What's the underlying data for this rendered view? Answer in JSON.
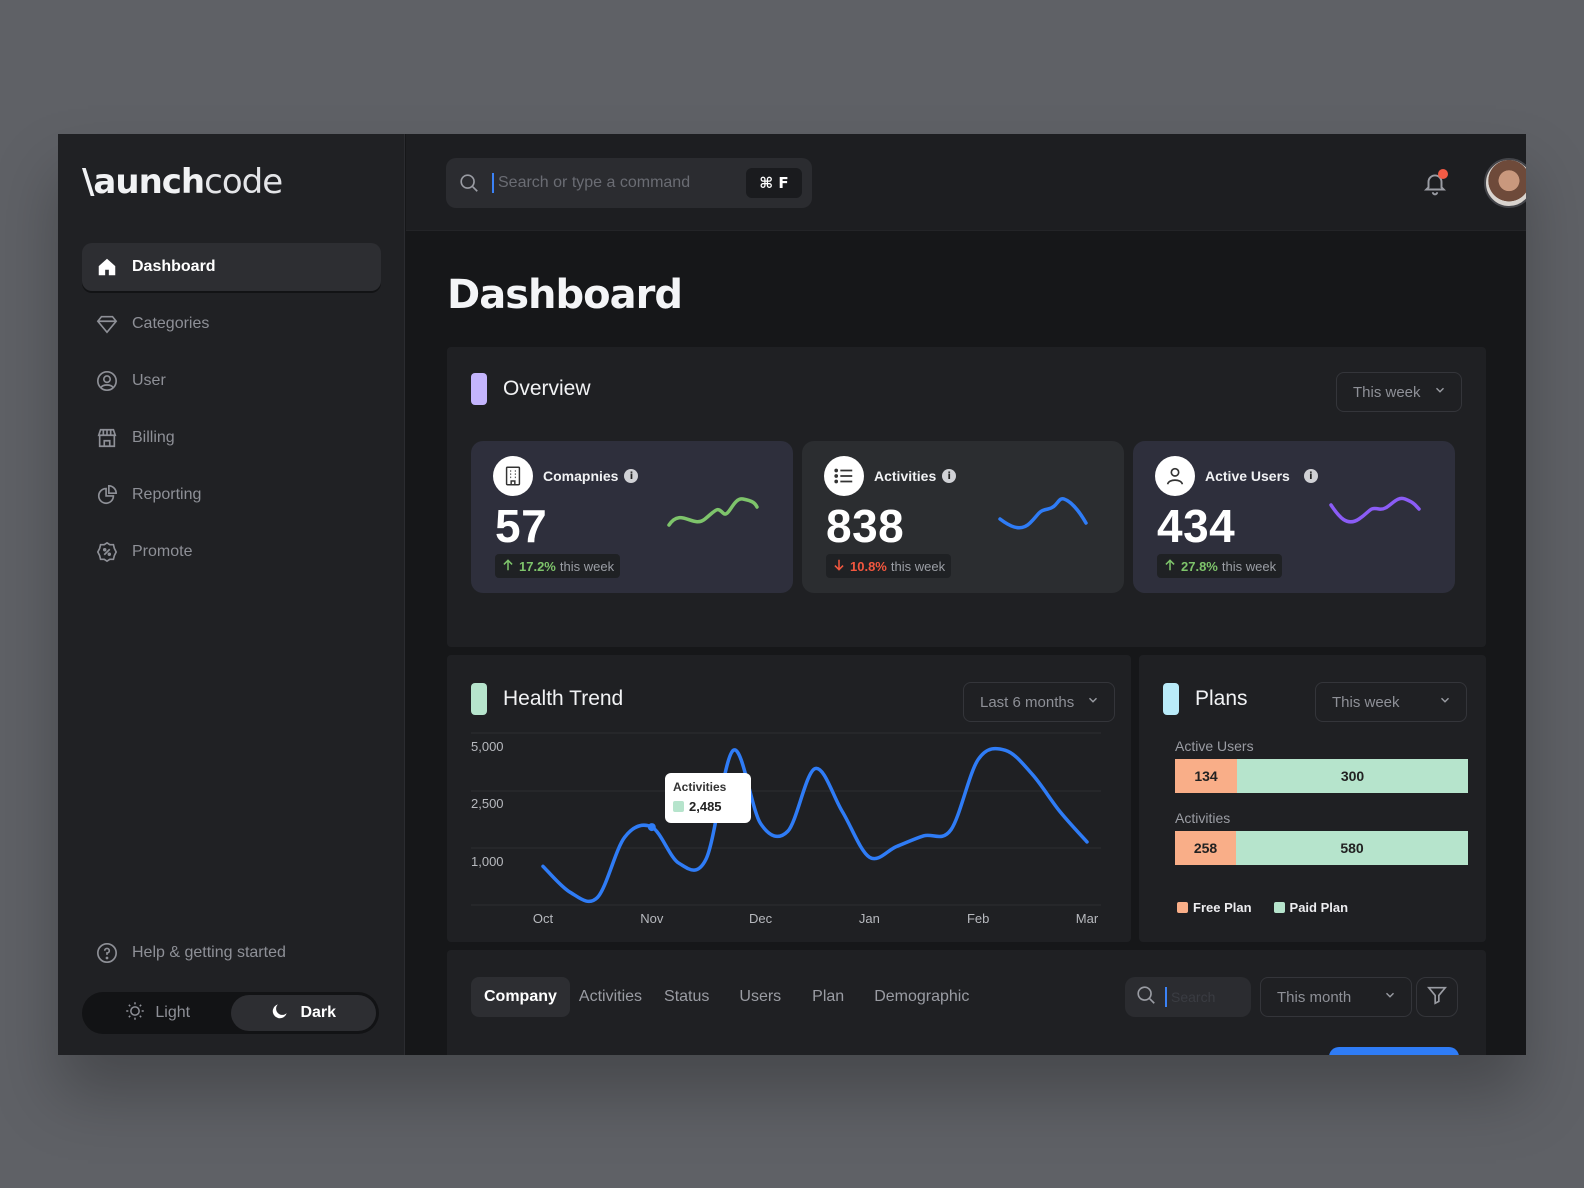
{
  "brand": {
    "logo_bold": "\\aunch",
    "logo_light": "code"
  },
  "sidebar": {
    "items": [
      {
        "label": "Dashboard",
        "icon": "home-icon",
        "active": true
      },
      {
        "label": "Categories",
        "icon": "diamond-icon"
      },
      {
        "label": "User",
        "icon": "user-circle-icon"
      },
      {
        "label": "Billing",
        "icon": "store-icon"
      },
      {
        "label": "Reporting",
        "icon": "pie-chart-icon"
      },
      {
        "label": "Promote",
        "icon": "badge-percent-icon"
      }
    ],
    "help_label": "Help & getting started",
    "theme": {
      "light_label": "Light",
      "dark_label": "Dark",
      "selected": "Dark"
    }
  },
  "topbar": {
    "search_placeholder": "Search or type a command",
    "shortcut": "⌘ F",
    "notification_dot": true
  },
  "page": {
    "title": "Dashboard"
  },
  "overview": {
    "title": "Overview",
    "period": "This week",
    "accent": "#c4b5fd",
    "cards": [
      {
        "label": "Comapnies",
        "value": "57",
        "change": "17.2%",
        "suffix": "this week",
        "direction": "up",
        "trend_color": "#7ec46b",
        "bg": "#2e2f3c"
      },
      {
        "label": "Activities",
        "value": "838",
        "change": "10.8%",
        "suffix": "this week",
        "direction": "down",
        "trend_color": "#2f7cf6",
        "bg": "#2b2d30"
      },
      {
        "label": "Active Users",
        "value": "434",
        "change": "27.8%",
        "suffix": "this week",
        "direction": "up",
        "trend_color": "#8b5cf6",
        "bg": "#2e2f3c"
      }
    ]
  },
  "health_trend": {
    "title": "Health Trend",
    "period": "Last 6 months",
    "accent": "#b6e4cc",
    "tooltip": {
      "label": "Activities",
      "value": "2,485"
    }
  },
  "chart_data": {
    "type": "line",
    "title": "Health Trend",
    "x_ticks": [
      "Oct",
      "Nov",
      "Dec",
      "Jan",
      "Feb",
      "Mar"
    ],
    "y_ticks": [
      "5,000",
      "2,500",
      "1,000"
    ],
    "series": [
      {
        "name": "Activities",
        "color": "#2f7cf6",
        "x": [
          0,
          0.25,
          0.5,
          0.75,
          1.0,
          1.25,
          1.5,
          1.75,
          2.0,
          2.25,
          2.5,
          2.75,
          3.0,
          3.25,
          3.5,
          3.75,
          4.0,
          4.25,
          4.5,
          4.75,
          5.0
        ],
        "y": [
          1200,
          350,
          180,
          2150,
          2485,
          1300,
          1450,
          5000,
          2600,
          2350,
          4400,
          3000,
          1500,
          1850,
          2200,
          2400,
          4700,
          5000,
          4200,
          3000,
          2000
        ]
      }
    ],
    "ylim": [
      0,
      5500
    ],
    "grid": true
  },
  "plans": {
    "title": "Plans",
    "period": "This week",
    "accent": "#b9ebf9",
    "rows": [
      {
        "label": "Active Users",
        "free": 134,
        "paid": 300
      },
      {
        "label": "Activities",
        "free": 258,
        "paid": 580
      }
    ],
    "legend": [
      {
        "label": "Free Plan",
        "color": "#f9ae88"
      },
      {
        "label": "Paid Plan",
        "color": "#b6e4cc"
      }
    ]
  },
  "table_panel": {
    "tabs": [
      "Company",
      "Activities",
      "Status",
      "Users",
      "Plan",
      "Demographic"
    ],
    "active_tab": "Company",
    "search_placeholder": "Search",
    "period": "This month"
  }
}
